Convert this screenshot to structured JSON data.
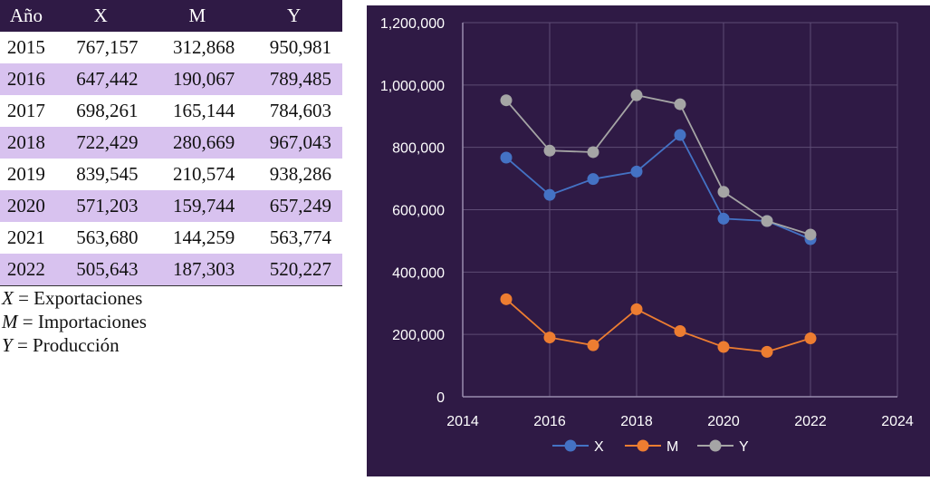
{
  "table": {
    "headers": [
      "Año",
      "X",
      "M",
      "Y"
    ],
    "rows": [
      [
        "2015",
        "767,157",
        "312,868",
        "950,981"
      ],
      [
        "2016",
        "647,442",
        "190,067",
        "789,485"
      ],
      [
        "2017",
        "698,261",
        "165,144",
        "784,603"
      ],
      [
        "2018",
        "722,429",
        "280,669",
        "967,043"
      ],
      [
        "2019",
        "839,545",
        "210,574",
        "938,286"
      ],
      [
        "2020",
        "571,203",
        "159,744",
        "657,249"
      ],
      [
        "2021",
        "563,680",
        "144,259",
        "563,774"
      ],
      [
        "2022",
        "505,643",
        "187,303",
        "520,227"
      ]
    ]
  },
  "definitions": [
    {
      "symbol": "X",
      "text": " = Exportaciones"
    },
    {
      "symbol": "M",
      "text": " = Importaciones"
    },
    {
      "symbol": "Y",
      "text": " = Producción"
    }
  ],
  "chart_data": {
    "type": "line",
    "title": "",
    "xlabel": "",
    "ylabel": "",
    "xlim": [
      2014,
      2024
    ],
    "ylim": [
      0,
      1200000
    ],
    "x_ticks": [
      2014,
      2016,
      2018,
      2020,
      2022,
      2024
    ],
    "x_tick_labels": [
      "2014",
      "2016",
      "2018",
      "2020",
      "2022",
      "2024"
    ],
    "y_ticks": [
      0,
      200000,
      400000,
      600000,
      800000,
      1000000,
      1200000
    ],
    "y_tick_labels": [
      "0",
      "200,000",
      "400,000",
      "600,000",
      "800,000",
      "1,000,000",
      "1,200,000"
    ],
    "grid": true,
    "legend": "bottom",
    "x": [
      2015,
      2016,
      2017,
      2018,
      2019,
      2020,
      2021,
      2022
    ],
    "series": [
      {
        "name": "X",
        "color": "#4472c4",
        "values": [
          767157,
          647442,
          698261,
          722429,
          839545,
          571203,
          563680,
          505643
        ]
      },
      {
        "name": "M",
        "color": "#ed7d31",
        "values": [
          312868,
          190067,
          165144,
          280669,
          210574,
          159744,
          144259,
          187303
        ]
      },
      {
        "name": "Y",
        "color": "#a5a5a5",
        "values": [
          950981,
          789485,
          784603,
          967043,
          938286,
          657249,
          563774,
          520227
        ]
      }
    ]
  }
}
